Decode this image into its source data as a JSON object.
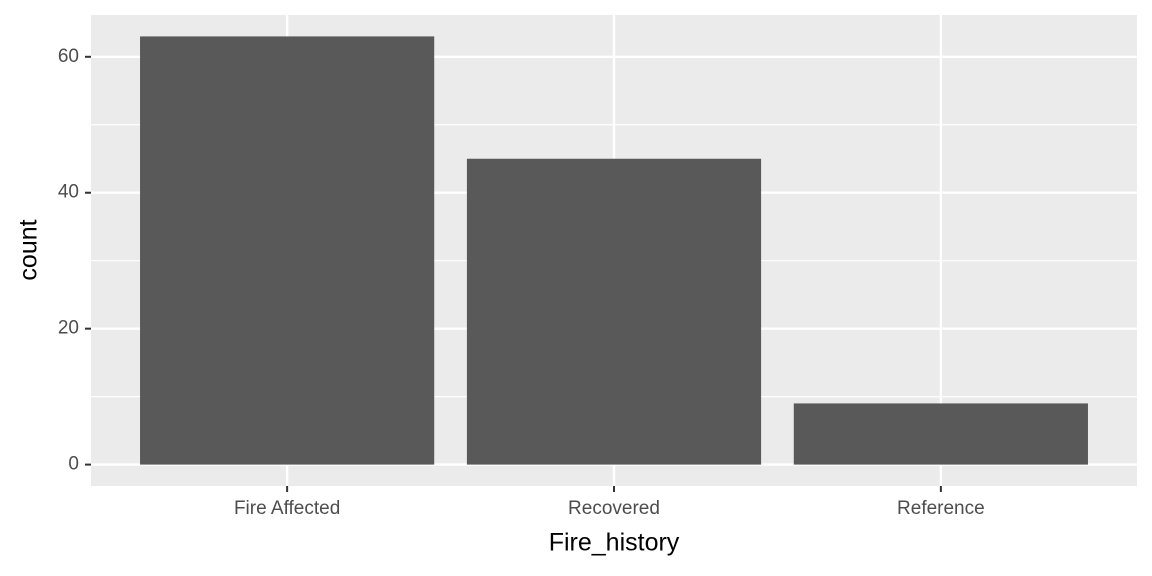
{
  "chart_data": {
    "type": "bar",
    "xlabel": "Fire_history",
    "ylabel": "count",
    "categories": [
      "Fire Affected",
      "Recovered",
      "Reference"
    ],
    "values": [
      63,
      45,
      9
    ],
    "color": "#595959",
    "ylim": [
      -3.15,
      66.15
    ],
    "yticks": [
      0,
      20,
      40,
      60
    ],
    "grid": true
  }
}
